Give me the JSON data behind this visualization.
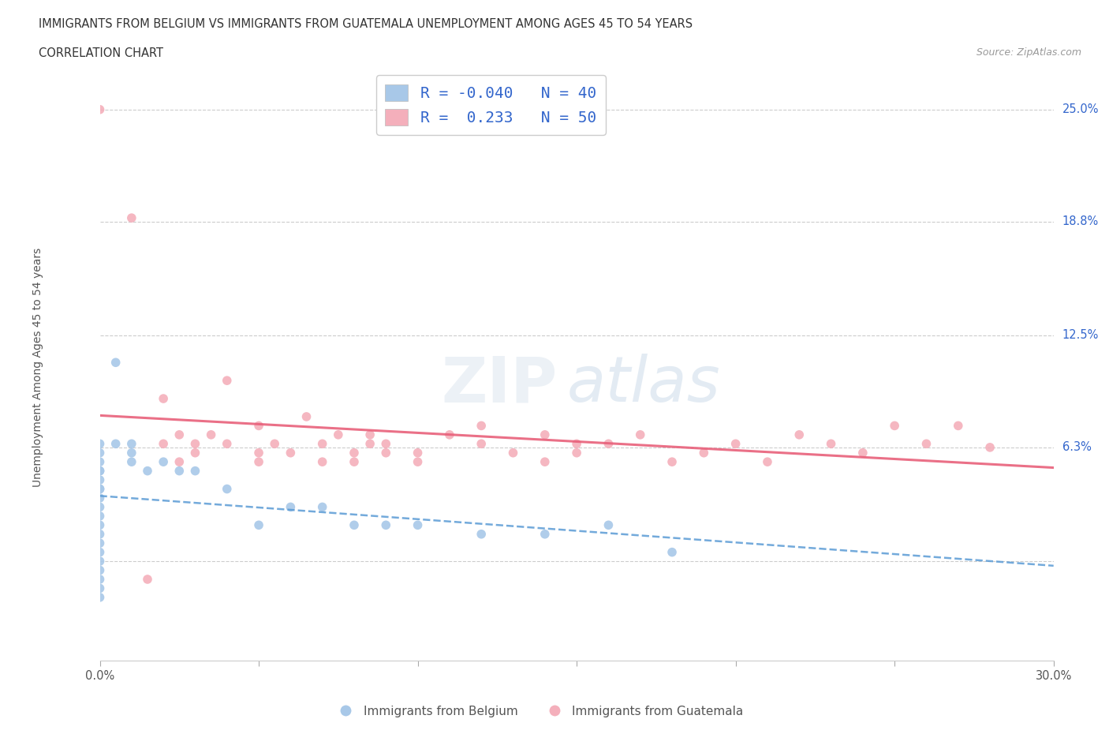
{
  "title_line1": "IMMIGRANTS FROM BELGIUM VS IMMIGRANTS FROM GUATEMALA UNEMPLOYMENT AMONG AGES 45 TO 54 YEARS",
  "title_line2": "CORRELATION CHART",
  "source": "Source: ZipAtlas.com",
  "ylabel": "Unemployment Among Ages 45 to 54 years",
  "xlim": [
    0.0,
    0.3
  ],
  "ylim": [
    -0.055,
    0.27
  ],
  "r_belgium": -0.04,
  "n_belgium": 40,
  "r_guatemala": 0.233,
  "n_guatemala": 50,
  "color_belgium": "#A8C8E8",
  "color_guatemala": "#F4AFBB",
  "trend_belgium_color": "#5B9BD5",
  "trend_guatemala_color": "#E8607A",
  "ytick_positions": [
    0.0,
    0.063,
    0.125,
    0.188,
    0.25
  ],
  "ytick_labels": [
    "",
    "6.3%",
    "12.5%",
    "18.8%",
    "25.0%"
  ],
  "belgium_x": [
    0.0,
    0.0,
    0.0,
    0.0,
    0.0,
    0.0,
    0.0,
    0.0,
    0.0,
    0.0,
    0.0,
    0.0,
    0.0,
    0.0,
    0.0,
    0.0,
    0.0,
    0.0,
    0.0,
    0.0,
    0.005,
    0.005,
    0.01,
    0.01,
    0.01,
    0.015,
    0.02,
    0.025,
    0.03,
    0.04,
    0.05,
    0.06,
    0.07,
    0.08,
    0.09,
    0.1,
    0.12,
    0.14,
    0.16,
    0.18
  ],
  "belgium_y": [
    0.05,
    0.055,
    0.06,
    0.065,
    0.04,
    0.045,
    0.05,
    0.035,
    0.04,
    0.03,
    0.025,
    0.02,
    0.015,
    0.01,
    0.005,
    0.0,
    -0.005,
    -0.01,
    -0.015,
    -0.02,
    0.065,
    0.11,
    0.055,
    0.06,
    0.065,
    0.05,
    0.055,
    0.05,
    0.05,
    0.04,
    0.02,
    0.03,
    0.03,
    0.02,
    0.02,
    0.02,
    0.015,
    0.015,
    0.02,
    0.005
  ],
  "guatemala_x": [
    0.0,
    0.01,
    0.015,
    0.02,
    0.02,
    0.025,
    0.025,
    0.03,
    0.03,
    0.035,
    0.04,
    0.04,
    0.05,
    0.05,
    0.05,
    0.055,
    0.06,
    0.065,
    0.07,
    0.07,
    0.075,
    0.08,
    0.08,
    0.085,
    0.085,
    0.09,
    0.09,
    0.1,
    0.1,
    0.11,
    0.12,
    0.12,
    0.13,
    0.14,
    0.14,
    0.15,
    0.15,
    0.16,
    0.17,
    0.18,
    0.19,
    0.2,
    0.21,
    0.22,
    0.23,
    0.24,
    0.25,
    0.26,
    0.27,
    0.28
  ],
  "guatemala_y": [
    0.25,
    0.19,
    -0.01,
    0.065,
    0.09,
    0.055,
    0.07,
    0.06,
    0.065,
    0.07,
    0.065,
    0.1,
    0.055,
    0.06,
    0.075,
    0.065,
    0.06,
    0.08,
    0.055,
    0.065,
    0.07,
    0.055,
    0.06,
    0.065,
    0.07,
    0.06,
    0.065,
    0.055,
    0.06,
    0.07,
    0.065,
    0.075,
    0.06,
    0.055,
    0.07,
    0.06,
    0.065,
    0.065,
    0.07,
    0.055,
    0.06,
    0.065,
    0.055,
    0.07,
    0.065,
    0.06,
    0.075,
    0.065,
    0.075,
    0.063
  ]
}
